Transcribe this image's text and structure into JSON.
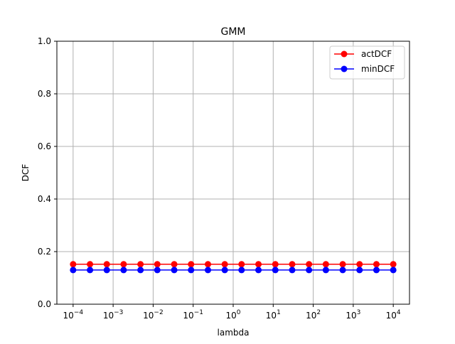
{
  "chart_data": {
    "type": "line",
    "title": "GMM",
    "xlabel": "lambda",
    "ylabel": "DCF",
    "xscale": "log",
    "xlim": [
      6e-05,
      0.00016
    ],
    "ylim": [
      0.0,
      1.0
    ],
    "grid": true,
    "legend_position": "top-right",
    "x_ticks": [
      {
        "value": 0.0001,
        "base": "10",
        "exp": "−4"
      },
      {
        "value": 0.001,
        "base": "10",
        "exp": "−3"
      },
      {
        "value": 0.01,
        "base": "10",
        "exp": "−2"
      },
      {
        "value": 0.1,
        "base": "10",
        "exp": "−1"
      },
      {
        "value": 1,
        "base": "10",
        "exp": "0"
      },
      {
        "value": 10,
        "base": "10",
        "exp": "1"
      },
      {
        "value": 100,
        "base": "10",
        "exp": "2"
      },
      {
        "value": 1000,
        "base": "10",
        "exp": "3"
      },
      {
        "value": 10000,
        "base": "10",
        "exp": "4"
      }
    ],
    "y_ticks": [
      "0.0",
      "0.2",
      "0.4",
      "0.6",
      "0.8",
      "1.0"
    ],
    "x": [
      0.0001,
      0.000264,
      0.000695,
      0.00183,
      0.00483,
      0.0127,
      0.0336,
      0.0886,
      0.234,
      0.616,
      1.62,
      4.28,
      11.3,
      29.8,
      78.5,
      207,
      546,
      1438,
      3793,
      10000
    ],
    "series": [
      {
        "name": "actDCF",
        "color": "#ff0000",
        "values": [
          0.152,
          0.152,
          0.152,
          0.152,
          0.152,
          0.152,
          0.152,
          0.152,
          0.152,
          0.152,
          0.152,
          0.152,
          0.152,
          0.152,
          0.152,
          0.152,
          0.152,
          0.152,
          0.152,
          0.152
        ]
      },
      {
        "name": "minDCF",
        "color": "#0000ff",
        "values": [
          0.13,
          0.13,
          0.13,
          0.13,
          0.13,
          0.13,
          0.13,
          0.13,
          0.13,
          0.13,
          0.13,
          0.13,
          0.13,
          0.13,
          0.13,
          0.13,
          0.13,
          0.13,
          0.13,
          0.13
        ]
      }
    ]
  }
}
